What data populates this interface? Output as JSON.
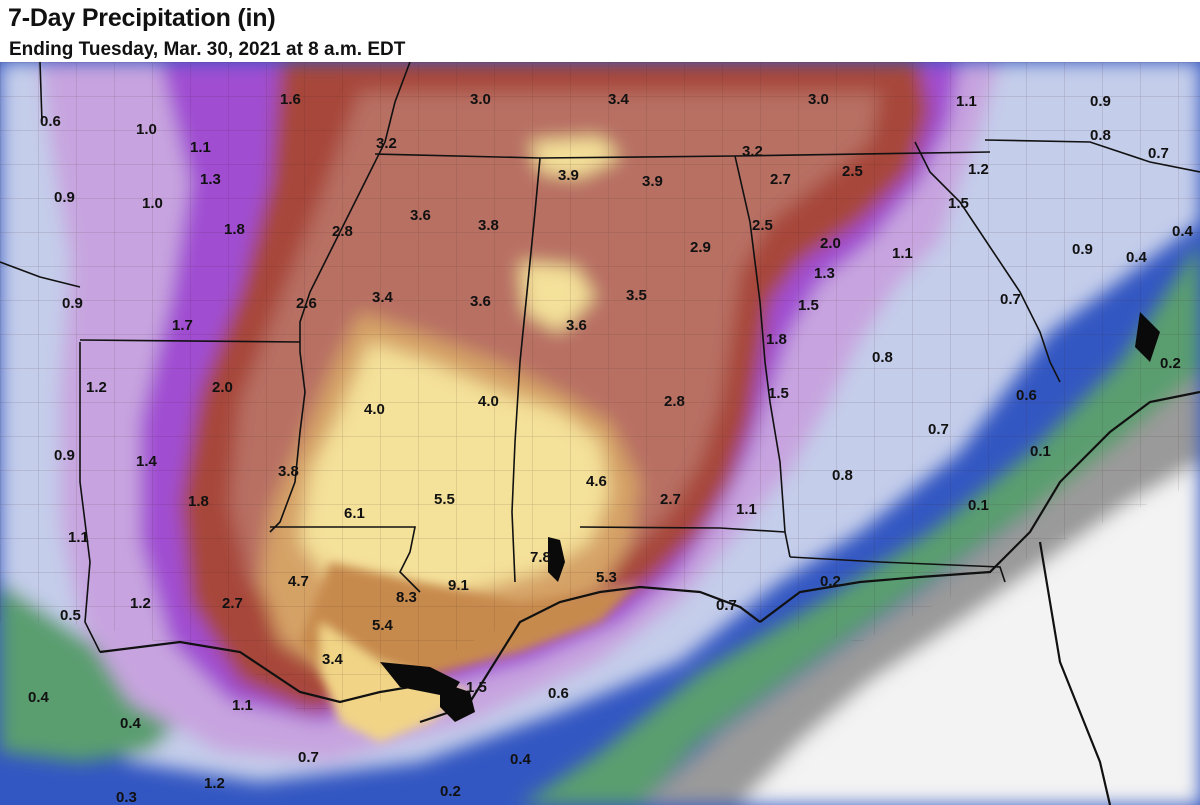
{
  "header": {
    "title": "7-Day Precipitation (in)",
    "subtitle": "Ending Tuesday, Mar. 30, 2021 at 8 a.m. EDT"
  },
  "colors": {
    "ocean": "#3357c2",
    "light_blue": "#c4cdea",
    "lavender": "#c7a4df",
    "purple": "#a04ed2",
    "rust": "#a7473b",
    "brown": "#b87063",
    "tan": "#d5a266",
    "light_yellow": "#f4e19a",
    "green": "#5a9e6f",
    "gray": "#8f8f8f",
    "border": "#111111"
  },
  "map_labels": [
    {
      "text": "0.6"
    },
    {
      "text": "1.6"
    },
    {
      "text": "3.0"
    },
    {
      "text": "3.4"
    },
    {
      "text": "3.0"
    },
    {
      "text": "1.1"
    },
    {
      "text": "0.9"
    },
    {
      "text": "1.0"
    },
    {
      "text": "0.8"
    },
    {
      "text": "0.7"
    },
    {
      "text": "1.1"
    },
    {
      "text": "3.2"
    },
    {
      "text": "3.2"
    },
    {
      "text": "1.3"
    },
    {
      "text": "3.9"
    },
    {
      "text": "3.9"
    },
    {
      "text": "2.7"
    },
    {
      "text": "2.5"
    },
    {
      "text": "1.2"
    },
    {
      "text": "0.9"
    },
    {
      "text": "1.0"
    },
    {
      "text": "1.5"
    },
    {
      "text": "1.8"
    },
    {
      "text": "2.8"
    },
    {
      "text": "3.6"
    },
    {
      "text": "3.8"
    },
    {
      "text": "2.5"
    },
    {
      "text": "2.9"
    },
    {
      "text": "2.0"
    },
    {
      "text": "1.1"
    },
    {
      "text": "0.9"
    },
    {
      "text": "0.4"
    },
    {
      "text": "0.4"
    },
    {
      "text": "1.3"
    },
    {
      "text": "0.9"
    },
    {
      "text": "2.6"
    },
    {
      "text": "3.4"
    },
    {
      "text": "3.6"
    },
    {
      "text": "3.5"
    },
    {
      "text": "1.5"
    },
    {
      "text": "0.7"
    },
    {
      "text": "1.7"
    },
    {
      "text": "3.6"
    },
    {
      "text": "1.8"
    },
    {
      "text": "0.8"
    },
    {
      "text": "0.2"
    },
    {
      "text": "1.2"
    },
    {
      "text": "2.0"
    },
    {
      "text": "1.5"
    },
    {
      "text": "0.6"
    },
    {
      "text": "4.0"
    },
    {
      "text": "4.0"
    },
    {
      "text": "2.8"
    },
    {
      "text": "0.7"
    },
    {
      "text": "0.9"
    },
    {
      "text": "1.4"
    },
    {
      "text": "0.1"
    },
    {
      "text": "3.8"
    },
    {
      "text": "4.6"
    },
    {
      "text": "0.8"
    },
    {
      "text": "1.8"
    },
    {
      "text": "5.5"
    },
    {
      "text": "2.7"
    },
    {
      "text": "6.1"
    },
    {
      "text": "1.1"
    },
    {
      "text": "0.1"
    },
    {
      "text": "1.1"
    },
    {
      "text": "7.8"
    },
    {
      "text": "4.7"
    },
    {
      "text": "9.1"
    },
    {
      "text": "5.3"
    },
    {
      "text": "0.2"
    },
    {
      "text": "1.2"
    },
    {
      "text": "2.7"
    },
    {
      "text": "8.3"
    },
    {
      "text": "0.5"
    },
    {
      "text": "0.7"
    },
    {
      "text": "5.4"
    },
    {
      "text": "3.4"
    },
    {
      "text": "1.5"
    },
    {
      "text": "0.6"
    },
    {
      "text": "0.4"
    },
    {
      "text": "1.1"
    },
    {
      "text": "0.4"
    },
    {
      "text": "0.7"
    },
    {
      "text": "0.4"
    },
    {
      "text": "1.2"
    },
    {
      "text": "0.3"
    },
    {
      "text": "0.2"
    }
  ]
}
